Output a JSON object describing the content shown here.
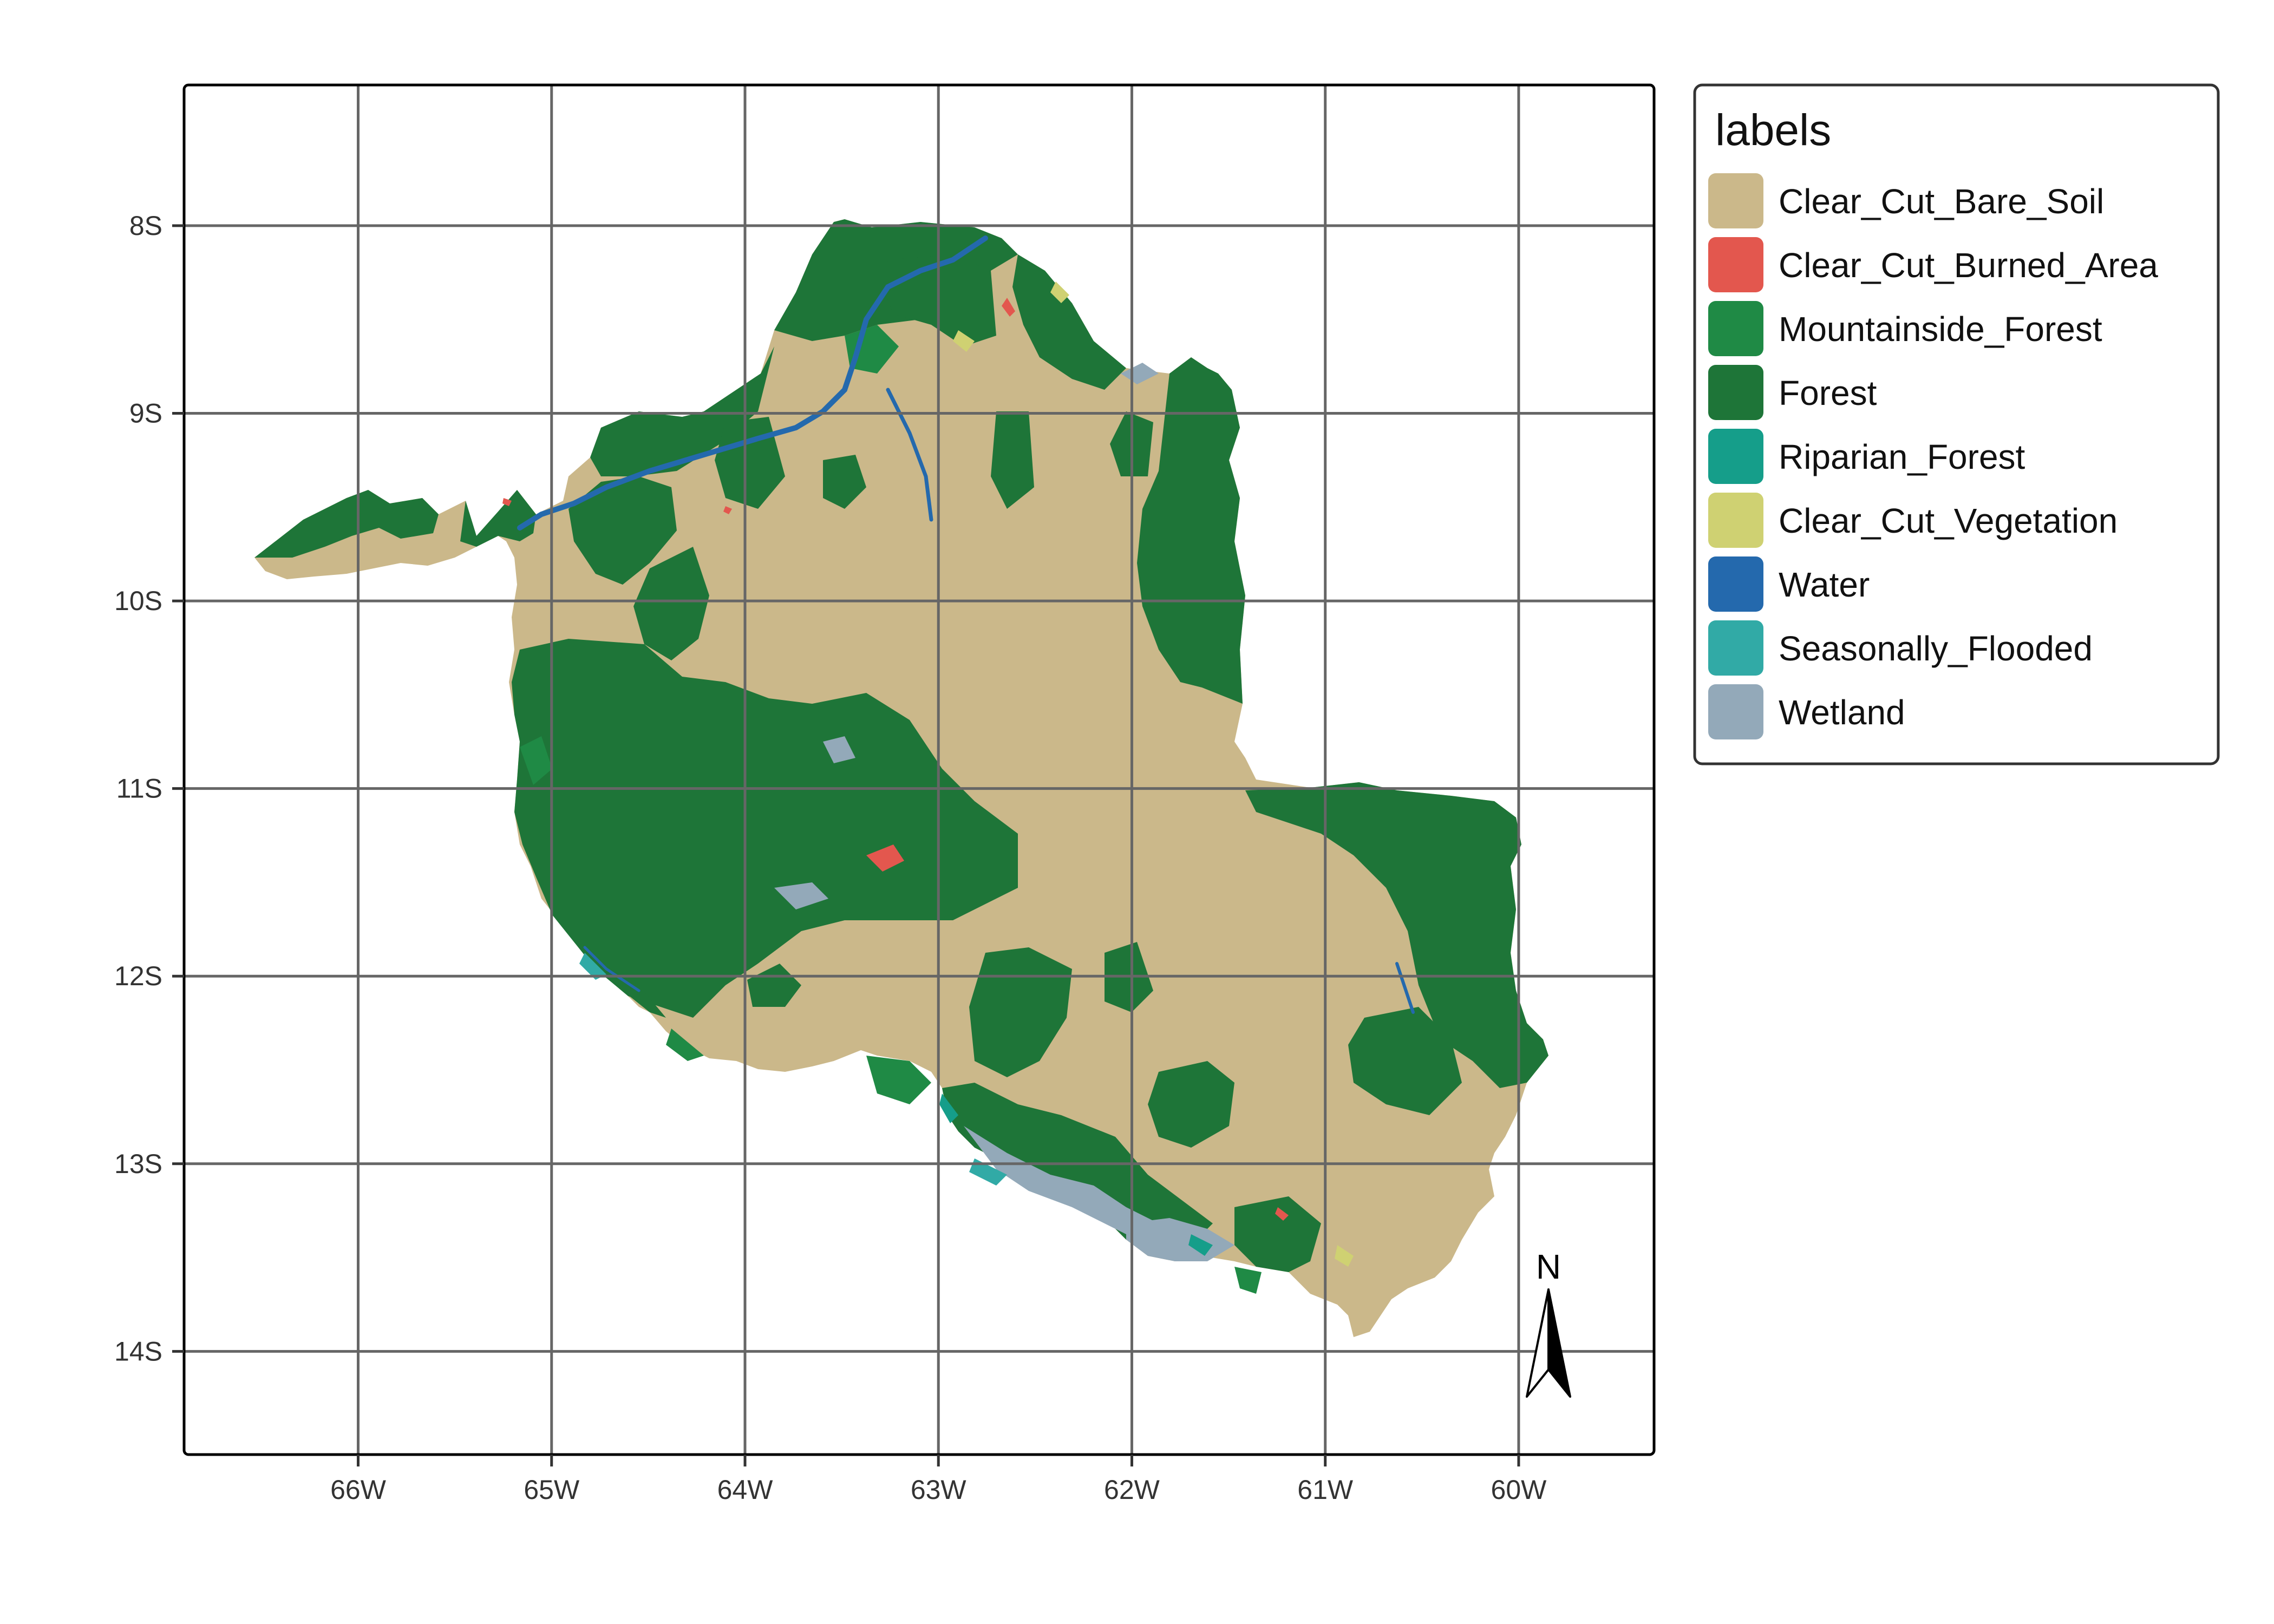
{
  "map": {
    "lon_range": [
      -66.9,
      -59.3
    ],
    "lat_range": [
      -14.55,
      -7.25
    ],
    "x_ticks": [
      {
        "value": -66,
        "label": "66W"
      },
      {
        "value": -65,
        "label": "65W"
      },
      {
        "value": -64,
        "label": "64W"
      },
      {
        "value": -63,
        "label": "63W"
      },
      {
        "value": -62,
        "label": "62W"
      },
      {
        "value": -61,
        "label": "61W"
      },
      {
        "value": -60,
        "label": "60W"
      }
    ],
    "y_ticks": [
      {
        "value": -8,
        "label": "8S"
      },
      {
        "value": -9,
        "label": "9S"
      },
      {
        "value": -10,
        "label": "10S"
      },
      {
        "value": -11,
        "label": "11S"
      },
      {
        "value": -12,
        "label": "12S"
      },
      {
        "value": -13,
        "label": "13S"
      },
      {
        "value": -14,
        "label": "14S"
      }
    ],
    "grid": true,
    "north_arrow": {
      "label": "N"
    }
  },
  "legend": {
    "title": "labels",
    "items": [
      {
        "label": "Clear_Cut_Bare_Soil",
        "color": "#cbb88a"
      },
      {
        "label": "Clear_Cut_Burned_Area",
        "color": "#e3574e"
      },
      {
        "label": "Mountainside_Forest",
        "color": "#1f8a45"
      },
      {
        "label": "Forest",
        "color": "#1e7538"
      },
      {
        "label": "Riparian_Forest",
        "color": "#159e8a"
      },
      {
        "label": "Clear_Cut_Vegetation",
        "color": "#cfd172"
      },
      {
        "label": "Water",
        "color": "#2469ad"
      },
      {
        "label": "Seasonally_Flooded",
        "color": "#31aaa6"
      },
      {
        "label": "Wetland",
        "color": "#93a9b9"
      }
    ]
  }
}
